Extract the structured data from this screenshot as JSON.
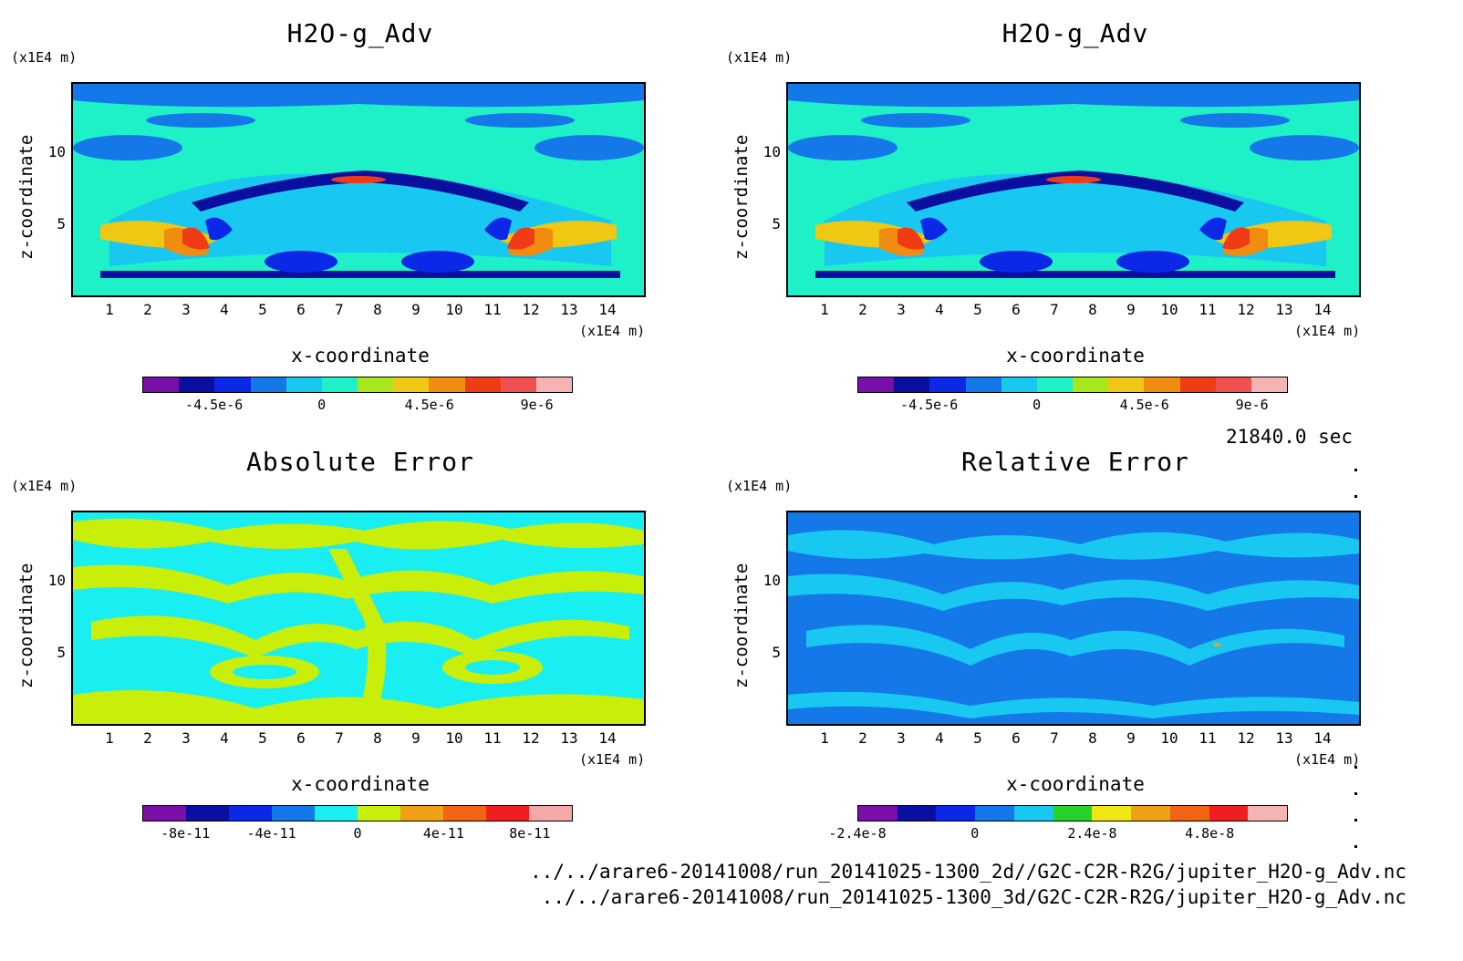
{
  "time_label": "21840.0 sec",
  "file_paths": [
    "../../arare6-20141008/run_20141025-1300_2d//G2C-C2R-R2G/jupiter_H2O-g_Adv.nc",
    "../../arare6-20141008/run_20141025-1300_3d/G2C-C2R-R2G/jupiter_H2O-g_Adv.nc"
  ],
  "chart_data": [
    {
      "type": "heatmap",
      "title": "H2O-g_Adv",
      "xlabel": "x-coordinate",
      "ylabel": "z-coordinate",
      "x_unit": "(x1E4 m)",
      "y_unit": "(x1E4 m)",
      "x_ticks": [
        "1",
        "2",
        "3",
        "4",
        "5",
        "6",
        "7",
        "8",
        "9",
        "10",
        "11",
        "12",
        "13",
        "14"
      ],
      "y_ticks": [
        "5",
        "10"
      ],
      "xlim": [
        0,
        15
      ],
      "ylim": [
        0,
        15
      ],
      "colorbar": {
        "colors": [
          "#7a0fa8",
          "#0a0fa0",
          "#0a28e6",
          "#1478e8",
          "#19c8f0",
          "#1ef0c8",
          "#a8e61e",
          "#f0c814",
          "#f08c0f",
          "#f03c14",
          "#f05050",
          "#f5b4b4"
        ],
        "labels": [
          "-4.5e-6",
          "0",
          "4.5e-6",
          "9e-6"
        ],
        "label_positions": [
          2,
          5,
          8,
          11
        ]
      }
    },
    {
      "type": "heatmap",
      "title": "H2O-g_Adv",
      "xlabel": "x-coordinate",
      "ylabel": "z-coordinate",
      "x_unit": "(x1E4 m)",
      "y_unit": "(x1E4 m)",
      "x_ticks": [
        "1",
        "2",
        "3",
        "4",
        "5",
        "6",
        "7",
        "8",
        "9",
        "10",
        "11",
        "12",
        "13",
        "14"
      ],
      "y_ticks": [
        "5",
        "10"
      ],
      "xlim": [
        0,
        15
      ],
      "ylim": [
        0,
        15
      ],
      "colorbar": {
        "colors": [
          "#7a0fa8",
          "#0a0fa0",
          "#0a28e6",
          "#1478e8",
          "#19c8f0",
          "#1ef0c8",
          "#a8e61e",
          "#f0c814",
          "#f08c0f",
          "#f03c14",
          "#f05050",
          "#f5b4b4"
        ],
        "labels": [
          "-4.5e-6",
          "0",
          "4.5e-6",
          "9e-6"
        ],
        "label_positions": [
          2,
          5,
          8,
          11
        ]
      }
    },
    {
      "type": "heatmap",
      "title": "Absolute Error",
      "xlabel": "x-coordinate",
      "ylabel": "z-coordinate",
      "x_unit": "(x1E4 m)",
      "y_unit": "(x1E4 m)",
      "x_ticks": [
        "1",
        "2",
        "3",
        "4",
        "5",
        "6",
        "7",
        "8",
        "9",
        "10",
        "11",
        "12",
        "13",
        "14"
      ],
      "y_ticks": [
        "5",
        "10"
      ],
      "xlim": [
        0,
        15
      ],
      "ylim": [
        0,
        15
      ],
      "colorbar": {
        "colors": [
          "#7a0fa8",
          "#0a0fa0",
          "#0a28e6",
          "#1478e8",
          "#19eef0",
          "#c8ee0a",
          "#f0a014",
          "#f06414",
          "#f01e1e",
          "#f5a8a8"
        ],
        "labels": [
          "-8e-11",
          "-4e-11",
          "0",
          "4e-11",
          "8e-11"
        ],
        "label_positions": [
          1,
          3,
          5,
          7,
          9
        ]
      }
    },
    {
      "type": "heatmap",
      "title": "Relative Error",
      "xlabel": "x-coordinate",
      "ylabel": "z-coordinate",
      "x_unit": "(x1E4 m)",
      "y_unit": "(x1E4 m)",
      "x_ticks": [
        "1",
        "2",
        "3",
        "4",
        "5",
        "6",
        "7",
        "8",
        "9",
        "10",
        "11",
        "12",
        "13",
        "14"
      ],
      "y_ticks": [
        "5",
        "10"
      ],
      "xlim": [
        0,
        15
      ],
      "ylim": [
        0,
        15
      ],
      "colorbar": {
        "colors": [
          "#7a0fa8",
          "#0a0fa0",
          "#0a28e6",
          "#1478e8",
          "#19c8f0",
          "#28d228",
          "#f0e614",
          "#f0a014",
          "#f06414",
          "#f01e1e",
          "#f5b4b4"
        ],
        "labels": [
          "-2.4e-8",
          "0",
          "2.4e-8",
          "4.8e-8"
        ],
        "label_positions": [
          0,
          3,
          6,
          9
        ]
      }
    }
  ]
}
